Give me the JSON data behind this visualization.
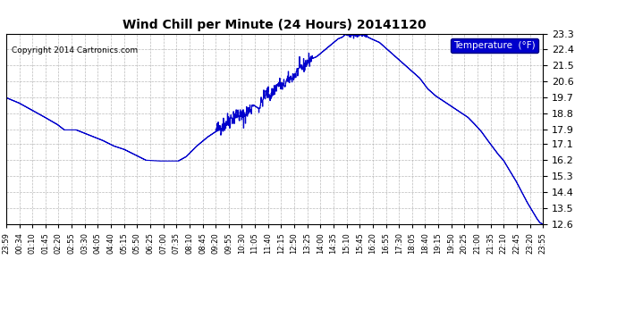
{
  "title": "Wind Chill per Minute (24 Hours) 20141120",
  "copyright": "Copyright 2014 Cartronics.com",
  "legend_label": "Temperature  (°F)",
  "line_color": "#0000CC",
  "bg_color": "#ffffff",
  "plot_bg_color": "#ffffff",
  "grid_color": "#aaaaaa",
  "legend_bg": "#0000CC",
  "legend_text_color": "#ffffff",
  "ylim": [
    12.6,
    23.3
  ],
  "yticks": [
    12.6,
    13.5,
    14.4,
    15.3,
    16.2,
    17.1,
    17.9,
    18.8,
    19.7,
    20.6,
    21.5,
    22.4,
    23.3
  ],
  "x_labels": [
    "23:59",
    "00:34",
    "01:10",
    "01:45",
    "02:20",
    "02:55",
    "03:30",
    "04:05",
    "04:40",
    "05:15",
    "05:50",
    "06:25",
    "07:00",
    "07:35",
    "08:10",
    "08:45",
    "09:20",
    "09:55",
    "10:30",
    "11:05",
    "11:40",
    "12:15",
    "12:50",
    "13:25",
    "14:00",
    "14:35",
    "15:10",
    "15:45",
    "16:20",
    "16:55",
    "17:30",
    "18:05",
    "18:40",
    "19:15",
    "19:50",
    "20:25",
    "21:00",
    "21:35",
    "22:10",
    "22:45",
    "23:20",
    "23:55"
  ],
  "control_points": [
    [
      0.0,
      19.7
    ],
    [
      0.024,
      19.4
    ],
    [
      0.048,
      19.0
    ],
    [
      0.072,
      18.6
    ],
    [
      0.095,
      18.2
    ],
    [
      0.108,
      17.9
    ],
    [
      0.13,
      17.9
    ],
    [
      0.155,
      17.6
    ],
    [
      0.18,
      17.3
    ],
    [
      0.2,
      17.0
    ],
    [
      0.22,
      16.8
    ],
    [
      0.24,
      16.5
    ],
    [
      0.26,
      16.2
    ],
    [
      0.29,
      16.15
    ],
    [
      0.31,
      16.15
    ],
    [
      0.32,
      16.15
    ],
    [
      0.335,
      16.4
    ],
    [
      0.355,
      17.0
    ],
    [
      0.375,
      17.5
    ],
    [
      0.39,
      17.8
    ],
    [
      0.4,
      18.1
    ],
    [
      0.41,
      18.3
    ],
    [
      0.42,
      18.6
    ],
    [
      0.43,
      18.8
    ],
    [
      0.44,
      18.6
    ],
    [
      0.45,
      18.9
    ],
    [
      0.46,
      19.3
    ],
    [
      0.47,
      19.1
    ],
    [
      0.478,
      19.6
    ],
    [
      0.485,
      20.0
    ],
    [
      0.492,
      19.8
    ],
    [
      0.5,
      20.2
    ],
    [
      0.508,
      20.5
    ],
    [
      0.515,
      20.3
    ],
    [
      0.522,
      20.6
    ],
    [
      0.53,
      20.8
    ],
    [
      0.538,
      21.0
    ],
    [
      0.546,
      21.3
    ],
    [
      0.555,
      21.5
    ],
    [
      0.563,
      21.8
    ],
    [
      0.57,
      21.9
    ],
    [
      0.578,
      22.0
    ],
    [
      0.586,
      22.2
    ],
    [
      0.594,
      22.4
    ],
    [
      0.602,
      22.6
    ],
    [
      0.61,
      22.8
    ],
    [
      0.618,
      23.0
    ],
    [
      0.626,
      23.1
    ],
    [
      0.634,
      23.3
    ],
    [
      0.64,
      23.2
    ],
    [
      0.648,
      23.3
    ],
    [
      0.655,
      23.2
    ],
    [
      0.663,
      23.3
    ],
    [
      0.67,
      23.15
    ],
    [
      0.68,
      23.0
    ],
    [
      0.695,
      22.8
    ],
    [
      0.71,
      22.4
    ],
    [
      0.725,
      22.0
    ],
    [
      0.74,
      21.6
    ],
    [
      0.755,
      21.2
    ],
    [
      0.77,
      20.8
    ],
    [
      0.785,
      20.2
    ],
    [
      0.8,
      19.8
    ],
    [
      0.815,
      19.5
    ],
    [
      0.83,
      19.2
    ],
    [
      0.845,
      18.9
    ],
    [
      0.86,
      18.6
    ],
    [
      0.873,
      18.2
    ],
    [
      0.885,
      17.8
    ],
    [
      0.897,
      17.3
    ],
    [
      0.907,
      16.9
    ],
    [
      0.917,
      16.5
    ],
    [
      0.926,
      16.2
    ],
    [
      0.934,
      15.8
    ],
    [
      0.942,
      15.4
    ],
    [
      0.95,
      15.0
    ],
    [
      0.957,
      14.6
    ],
    [
      0.964,
      14.2
    ],
    [
      0.971,
      13.8
    ],
    [
      0.977,
      13.5
    ],
    [
      0.983,
      13.2
    ],
    [
      0.989,
      12.9
    ],
    [
      0.994,
      12.7
    ],
    [
      1.0,
      12.6
    ]
  ]
}
